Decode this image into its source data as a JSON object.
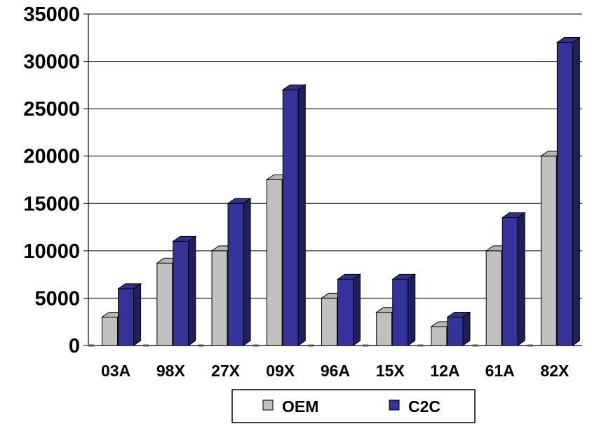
{
  "chart_data": {
    "type": "bar",
    "categories": [
      "03A",
      "98X",
      "27X",
      "09X",
      "96A",
      "15X",
      "12A",
      "61A",
      "82X"
    ],
    "series": [
      {
        "name": "OEM",
        "values": [
          3000,
          8700,
          10000,
          17500,
          5000,
          3500,
          2000,
          10000,
          20000
        ],
        "color": "#c0c0c0"
      },
      {
        "name": "C2C",
        "values": [
          6000,
          11000,
          15000,
          27000,
          7000,
          7000,
          3000,
          13500,
          32000
        ],
        "color": "#333399"
      }
    ],
    "ylim": [
      0,
      35000
    ],
    "yticks": [
      "0",
      "5000",
      "10000",
      "15000",
      "20000",
      "25000",
      "30000",
      "35000"
    ],
    "grid": true,
    "legend_position": "bottom-center"
  }
}
